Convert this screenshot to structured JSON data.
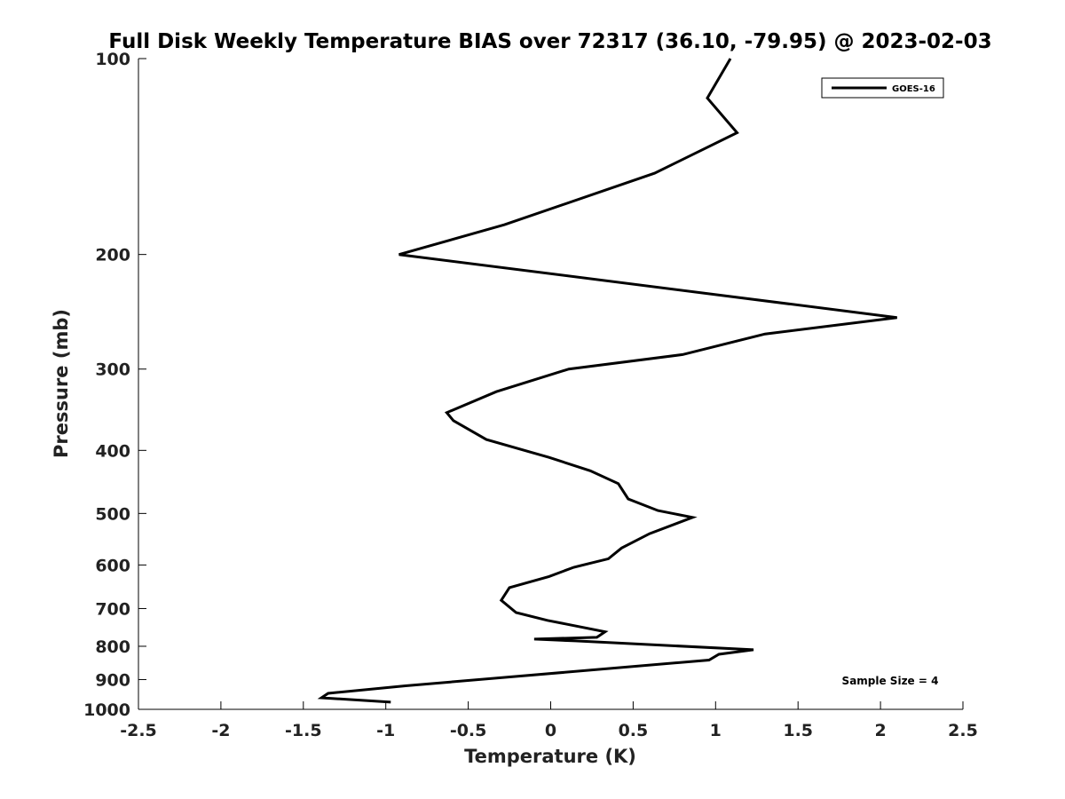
{
  "chart_data": {
    "type": "line",
    "title": "Full Disk Weekly Temperature BIAS over 72317 (36.10, -79.95) @ 2023-02-03",
    "xlabel": "Temperature (K)",
    "ylabel": "Pressure (mb)",
    "xlim": [
      -2.5,
      2.5
    ],
    "ylim": [
      100,
      1000
    ],
    "yscale": "log",
    "yreversed": true,
    "grid": false,
    "xticks": [
      -2.5,
      -2,
      -1.5,
      -1,
      -0.5,
      0,
      0.5,
      1,
      1.5,
      2,
      2.5
    ],
    "xtick_labels": [
      "-2.5",
      "-2",
      "-1.5",
      "-1",
      "-0.5",
      "0",
      "0.5",
      "1",
      "1.5",
      "2",
      "2.5"
    ],
    "yticks": [
      100,
      200,
      300,
      400,
      500,
      600,
      700,
      800,
      900,
      1000
    ],
    "ytick_labels": [
      "100",
      "200",
      "300",
      "400",
      "500",
      "600",
      "700",
      "800",
      "900",
      "1000"
    ],
    "legend_position": "top-right",
    "series": [
      {
        "name": "GOES-16",
        "color": "#000000",
        "x": [
          1.09,
          0.95,
          1.13,
          0.63,
          -0.28,
          -0.92,
          2.1,
          1.3,
          0.8,
          0.11,
          -0.33,
          -0.63,
          -0.59,
          -0.39,
          -0.01,
          0.24,
          0.41,
          0.47,
          0.65,
          0.86,
          0.6,
          0.43,
          0.35,
          0.14,
          -0.01,
          -0.25,
          -0.3,
          -0.21,
          -0.02,
          0.33,
          0.28,
          -0.1,
          0.15,
          1.23,
          1.02,
          0.96,
          -0.88,
          -1.35,
          -1.39,
          -0.97
        ],
        "y": [
          100,
          115,
          130,
          150,
          180,
          200,
          250,
          265,
          285,
          300,
          325,
          350,
          360,
          385,
          410,
          430,
          450,
          475,
          495,
          507,
          537,
          565,
          587,
          605,
          625,
          650,
          680,
          710,
          730,
          760,
          775,
          780,
          785,
          810,
          823,
          840,
          920,
          945,
          960,
          975
        ]
      }
    ],
    "annotations": [
      "Sample Size = 4"
    ]
  }
}
